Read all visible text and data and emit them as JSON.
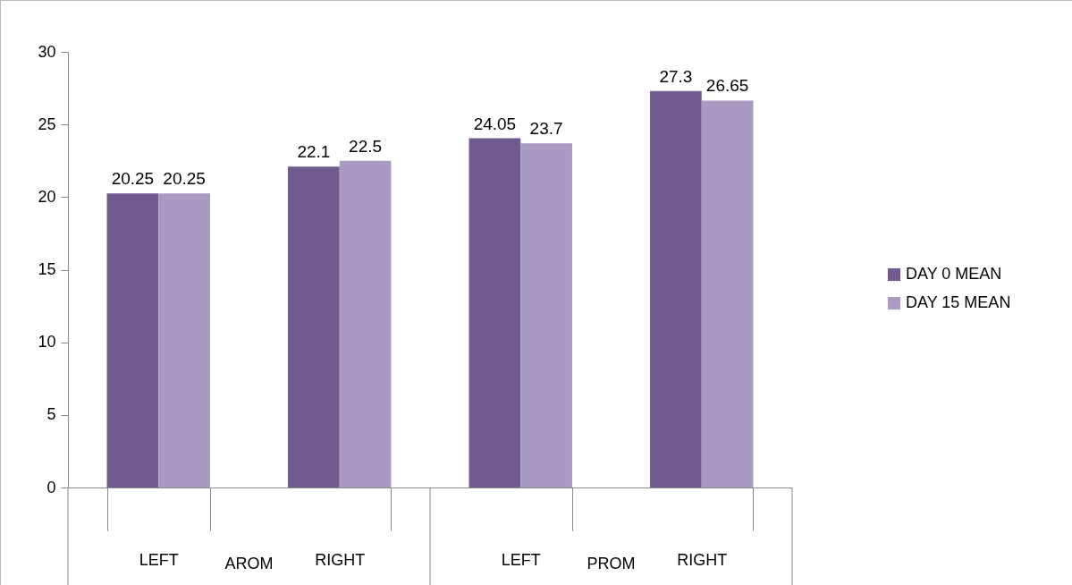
{
  "chart_data": {
    "type": "bar",
    "categories": [
      "LEFT",
      "RIGHT",
      "LEFT",
      "RIGHT"
    ],
    "series": [
      {
        "name": "DAY 0 MEAN",
        "color": "#715a8f",
        "values": [
          20.25,
          22.1,
          24.05,
          27.3
        ]
      },
      {
        "name": "DAY 15 MEAN",
        "color": "#a89ac0",
        "values": [
          20.25,
          22.5,
          23.7,
          26.65
        ]
      }
    ],
    "annotations": [
      "AROM",
      "PROM"
    ],
    "ylim": [
      0,
      30
    ],
    "yticks": [
      0,
      5,
      10,
      15,
      20,
      25,
      30
    ],
    "grid": false,
    "legend": "right",
    "data_labels": true
  }
}
